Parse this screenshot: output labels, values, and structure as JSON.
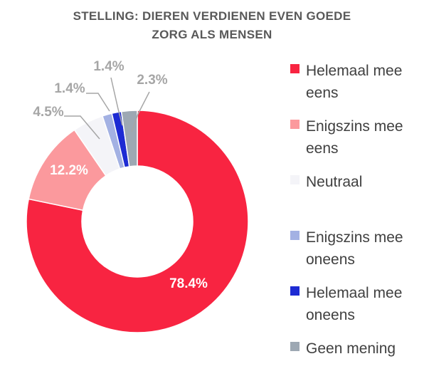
{
  "chart_data": {
    "type": "pie",
    "title": "STELLING: DIEREN VERDIENEN EVEN GOEDE ZORG ALS MENSEN",
    "title_lines": [
      "STELLING: DIEREN VERDIENEN EVEN GOEDE",
      "ZORG ALS MENSEN"
    ],
    "donut": true,
    "start": "top, clockwise",
    "legend_position": "right",
    "slices": [
      {
        "label": "Helemaal mee eens",
        "label_lines": [
          "Helemaal mee",
          "eens"
        ],
        "value": 78.4,
        "display": "78.4%",
        "color": "#f82441",
        "label_color": "#ffffff"
      },
      {
        "label": "Enigszins mee eens",
        "label_lines": [
          "Enigszins mee",
          "eens"
        ],
        "value": 12.2,
        "display": "12.2%",
        "color": "#fb999d",
        "label_color": "#ffffff"
      },
      {
        "label": "Neutraal",
        "label_lines": [
          "Neutraal"
        ],
        "value": 4.5,
        "display": "4.5%",
        "color": "#f4f4f8",
        "label_color": "#a6a6a6"
      },
      {
        "label": "Enigszins mee oneens",
        "label_lines": [
          "Enigszins mee",
          "oneens"
        ],
        "value": 1.4,
        "display": "1.4%",
        "color": "#a3b1e3",
        "label_color": "#a6a6a6"
      },
      {
        "label": "Helemaal mee oneens",
        "label_lines": [
          "Helemaal mee",
          "oneens"
        ],
        "value": 1.4,
        "display": "1.4%",
        "color": "#1d2bd3",
        "label_color": "#a6a6a6"
      },
      {
        "label": "Geen mening",
        "label_lines": [
          "Geen mening"
        ],
        "value": 2.3,
        "display": "2.3%",
        "color": "#9da8b3",
        "label_color": "#a6a6a6"
      }
    ]
  }
}
